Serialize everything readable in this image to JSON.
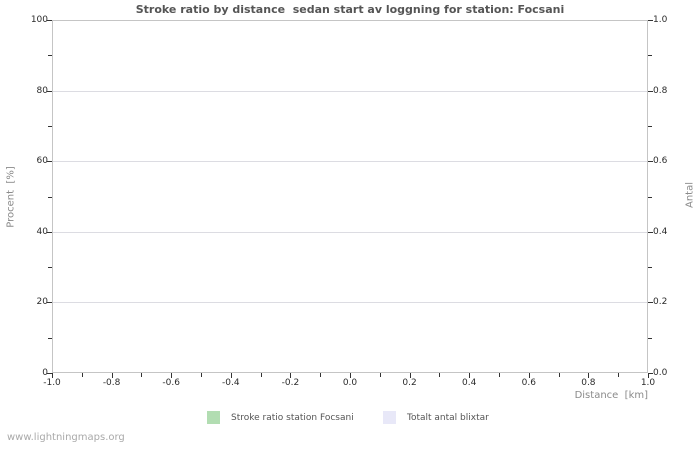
{
  "watermark": "www.lightningmaps.org",
  "chart_data": {
    "type": "bar",
    "title": "Stroke ratio by distance  sedan start av loggning for station: Focsani",
    "series": [
      {
        "name": "Stroke ratio station Focsani",
        "color": "#b2ddb2",
        "values": []
      },
      {
        "name": "Totalt antal blixtar",
        "color": "#e8e8f8",
        "values": []
      }
    ],
    "note": "empty plot area - no data points rendered",
    "grid": true,
    "legend_position": "bottom",
    "left_axis": {
      "label": "Procent  [%]",
      "min": 0,
      "max": 100,
      "ticks": [
        "0",
        "20",
        "40",
        "60",
        "80",
        "100"
      ],
      "minor_ticks": [
        10,
        30,
        50,
        70,
        90
      ]
    },
    "right_axis": {
      "label": "Antal",
      "min": 0,
      "max": 1,
      "ticks": [
        "0.0",
        "0.2",
        "0.4",
        "0.6",
        "0.8",
        "1.0"
      ],
      "minor_ticks": [
        0.1,
        0.3,
        0.5,
        0.7,
        0.9
      ]
    },
    "x_axis": {
      "label": "Distance  [km]",
      "min": -1,
      "max": 1,
      "ticks": [
        "-1.0",
        "-0.8",
        "-0.6",
        "-0.4",
        "-0.2",
        "0.0",
        "0.2",
        "0.4",
        "0.6",
        "0.8",
        "1.0"
      ],
      "minor_ticks": [
        -0.9,
        -0.7,
        -0.5,
        -0.3,
        -0.1,
        0.1,
        0.3,
        0.5,
        0.7,
        0.9
      ]
    }
  },
  "legend": {
    "items": [
      {
        "label": "Stroke ratio station Focsani",
        "color": "#b2ddb2"
      },
      {
        "label": "Totalt antal blixtar",
        "color": "#e8e8f8"
      }
    ]
  }
}
